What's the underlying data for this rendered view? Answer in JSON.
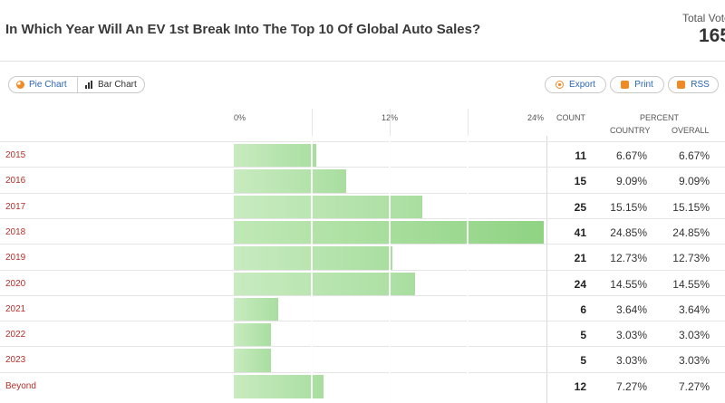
{
  "header": {
    "title": "In Which Year Will An EV 1st Break Into The Top 10 Of Global Auto Sales?",
    "total_votes_label": "Total Votes",
    "total_votes_value": "165"
  },
  "toolbar": {
    "pie_chart_label": "Pie Chart",
    "bar_chart_label": "Bar Chart",
    "export_label": "Export",
    "print_label": "Print",
    "rss_label": "RSS"
  },
  "table": {
    "axis_ticks": [
      "0%",
      "12%",
      "24%"
    ],
    "count_header": "COUNT",
    "percent_header": "PERCENT",
    "country_header": "COUNTRY",
    "overall_header": "OVERALL",
    "rows": [
      {
        "year": "2015",
        "count": "11",
        "country": "6.67%",
        "overall": "6.67%"
      },
      {
        "year": "2016",
        "count": "15",
        "country": "9.09%",
        "overall": "9.09%"
      },
      {
        "year": "2017",
        "count": "25",
        "country": "15.15%",
        "overall": "15.15%"
      },
      {
        "year": "2018",
        "count": "41",
        "country": "24.85%",
        "overall": "24.85%"
      },
      {
        "year": "2019",
        "count": "21",
        "country": "12.73%",
        "overall": "12.73%"
      },
      {
        "year": "2020",
        "count": "24",
        "country": "14.55%",
        "overall": "14.55%"
      },
      {
        "year": "2021",
        "count": "6",
        "country": "3.64%",
        "overall": "3.64%"
      },
      {
        "year": "2022",
        "count": "5",
        "country": "3.03%",
        "overall": "3.03%"
      },
      {
        "year": "2023",
        "count": "5",
        "country": "3.03%",
        "overall": "3.03%"
      },
      {
        "year": "Beyond",
        "count": "12",
        "country": "7.27%",
        "overall": "7.27%"
      }
    ]
  },
  "chart_data": {
    "type": "bar",
    "orientation": "horizontal",
    "categories": [
      "2015",
      "2016",
      "2017",
      "2018",
      "2019",
      "2020",
      "2021",
      "2022",
      "2023",
      "Beyond"
    ],
    "values": [
      6.67,
      9.09,
      15.15,
      24.85,
      12.73,
      14.55,
      3.64,
      3.03,
      3.03,
      7.27
    ],
    "xlim": [
      0,
      24.85
    ],
    "colors": {
      "bar": "#a9dea0",
      "bar_top": "#8fd383",
      "accent": "#f08a24",
      "link": "#2a66b8",
      "year": "#b5302a"
    }
  }
}
